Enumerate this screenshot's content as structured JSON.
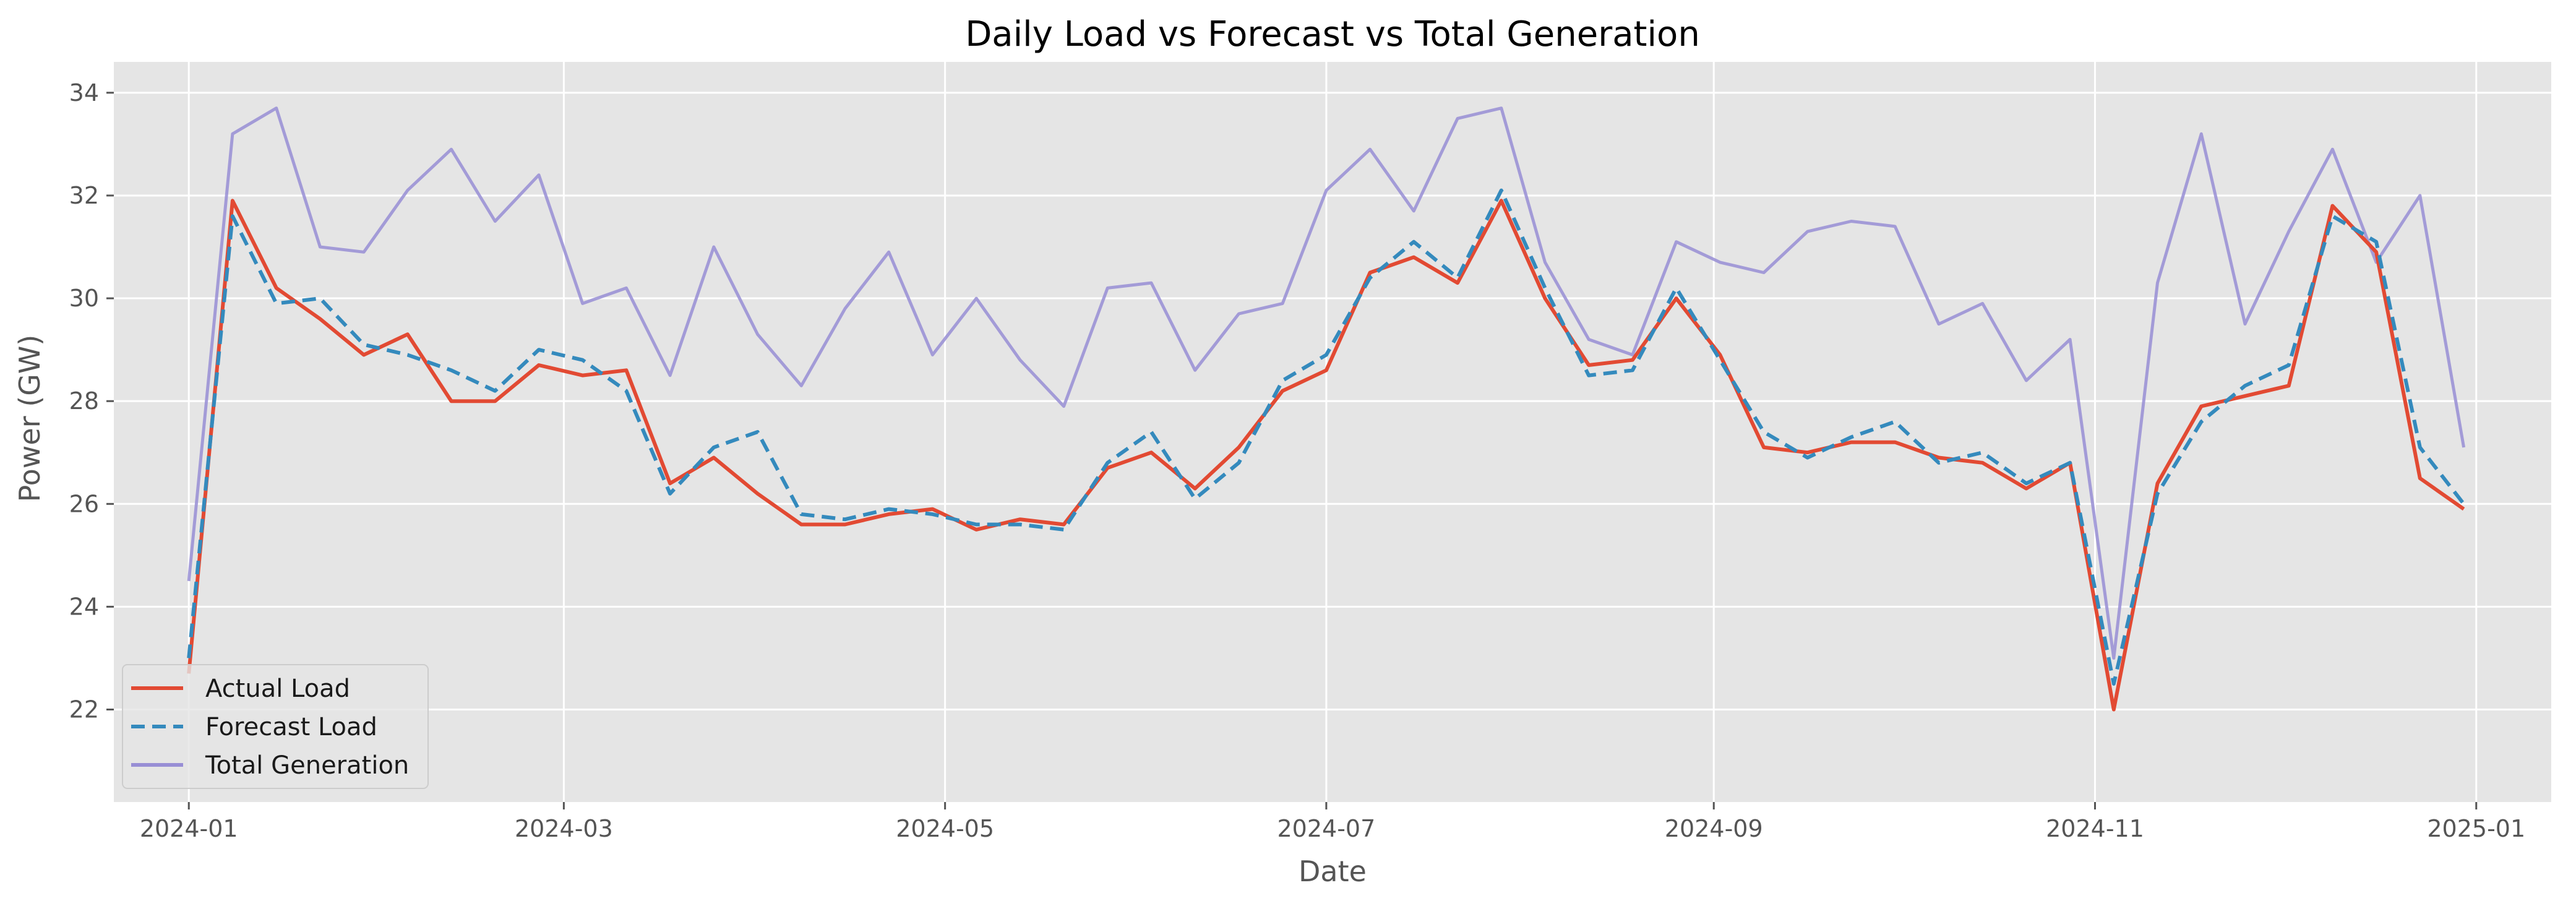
{
  "chart_data": {
    "type": "line",
    "title": "Daily Load vs Forecast vs Total Generation",
    "xlabel": "Date",
    "ylabel": "Power (GW)",
    "x_ticks": [
      "2024-01",
      "2024-03",
      "2024-05",
      "2024-07",
      "2024-09",
      "2024-11",
      "2025-01"
    ],
    "y_ticks": [
      "22",
      "24",
      "26",
      "28",
      "30",
      "32",
      "34"
    ],
    "xlim": [
      "2023-12-20",
      "2025-01-13"
    ],
    "ylim": [
      20.2,
      34.6
    ],
    "grid": true,
    "legend_position": "lower-left",
    "x": [
      "2024-01-01",
      "2024-01-08",
      "2024-01-15",
      "2024-01-22",
      "2024-01-29",
      "2024-02-05",
      "2024-02-12",
      "2024-02-19",
      "2024-02-26",
      "2024-03-04",
      "2024-03-11",
      "2024-03-18",
      "2024-03-25",
      "2024-04-01",
      "2024-04-08",
      "2024-04-15",
      "2024-04-22",
      "2024-04-29",
      "2024-05-06",
      "2024-05-13",
      "2024-05-20",
      "2024-05-27",
      "2024-06-03",
      "2024-06-10",
      "2024-06-17",
      "2024-06-24",
      "2024-07-01",
      "2024-07-08",
      "2024-07-15",
      "2024-07-22",
      "2024-07-29",
      "2024-08-05",
      "2024-08-12",
      "2024-08-19",
      "2024-08-26",
      "2024-09-02",
      "2024-09-09",
      "2024-09-16",
      "2024-09-23",
      "2024-09-30",
      "2024-10-07",
      "2024-10-14",
      "2024-10-21",
      "2024-10-28",
      "2024-11-04",
      "2024-11-11",
      "2024-11-18",
      "2024-11-25",
      "2024-12-02",
      "2024-12-09",
      "2024-12-16",
      "2024-12-23",
      "2024-12-30"
    ],
    "series": [
      {
        "name": "Actual Load",
        "color": "#E24A33",
        "dash": "solid",
        "values": [
          22.7,
          31.9,
          30.2,
          29.6,
          28.9,
          29.3,
          28.0,
          28.0,
          28.7,
          28.5,
          28.6,
          26.4,
          26.9,
          26.2,
          25.6,
          25.6,
          25.8,
          25.9,
          25.5,
          25.7,
          25.6,
          26.7,
          27.0,
          26.3,
          27.1,
          28.2,
          28.6,
          30.5,
          30.8,
          30.3,
          31.9,
          30.0,
          28.7,
          28.8,
          30.0,
          28.9,
          27.1,
          27.0,
          27.2,
          27.2,
          26.9,
          26.8,
          26.3,
          26.8,
          22.0,
          26.4,
          27.9,
          28.1,
          28.3,
          31.8,
          30.9,
          26.5,
          25.9
        ]
      },
      {
        "name": "Forecast Load",
        "color": "#348ABD",
        "dash": "dashed",
        "values": [
          23.0,
          31.6,
          29.9,
          30.0,
          29.1,
          28.9,
          28.6,
          28.2,
          29.0,
          28.8,
          28.2,
          26.2,
          27.1,
          27.4,
          25.8,
          25.7,
          25.9,
          25.8,
          25.6,
          25.6,
          25.5,
          26.8,
          27.4,
          26.1,
          26.8,
          28.4,
          28.9,
          30.4,
          31.1,
          30.4,
          32.1,
          30.2,
          28.5,
          28.6,
          30.2,
          28.8,
          27.4,
          26.9,
          27.3,
          27.6,
          26.8,
          27.0,
          26.4,
          26.8,
          22.5,
          26.2,
          27.6,
          28.3,
          28.7,
          31.6,
          31.1,
          27.1,
          26.0
        ]
      },
      {
        "name": "Total Generation",
        "color": "#988ED5",
        "dash": "solid",
        "values": [
          24.5,
          33.2,
          33.7,
          31.0,
          30.9,
          32.1,
          32.9,
          31.5,
          32.4,
          29.9,
          30.2,
          28.5,
          31.0,
          29.3,
          28.3,
          29.8,
          30.9,
          28.9,
          30.0,
          28.8,
          27.9,
          30.2,
          30.3,
          28.6,
          29.7,
          29.9,
          32.1,
          32.9,
          31.7,
          33.5,
          33.7,
          30.7,
          29.2,
          28.9,
          31.1,
          30.7,
          30.5,
          31.3,
          31.5,
          31.4,
          29.5,
          29.9,
          28.4,
          29.2,
          23.0,
          30.3,
          33.2,
          29.5,
          31.3,
          32.9,
          30.7,
          32.0,
          27.1
        ]
      }
    ]
  }
}
